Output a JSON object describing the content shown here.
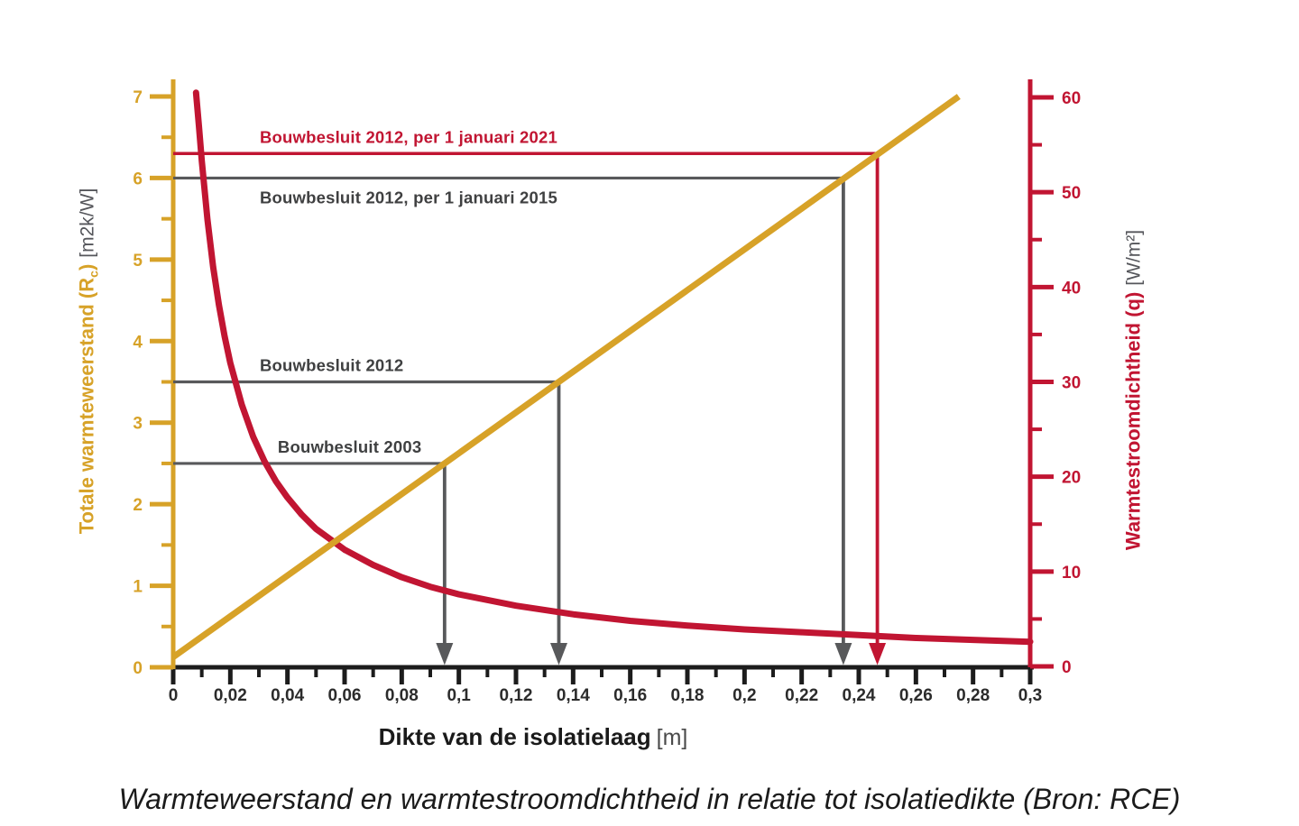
{
  "caption": "Warmteweerstand en warmtestroomdichtheid in relatie tot isolatiedikte (Bron: RCE)",
  "x_axis_title": {
    "text": "Dikte van de isolatielaag",
    "unit": "[m]"
  },
  "left_axis_title": {
    "text": "Totale warmteweerstand (R",
    "sub": "c",
    "close": ")",
    "unit": "[m2k/W]"
  },
  "right_axis_title": {
    "text": "Warmtestroomdichtheid (q)",
    "unit": "[W/m²]"
  },
  "colors": {
    "gold": "#D7A228",
    "red": "#C11532",
    "gray_line": "#58595B",
    "gray_text": "#3F4041",
    "axis_black": "#1C1C1C",
    "tick_text_dark": "#2B2B2B"
  },
  "chart_data": {
    "type": "line",
    "title": "Warmteweerstand en warmtestroomdichtheid in relatie tot isolatiedikte (Bron: RCE)",
    "xlabel": "Dikte van de isolatielaag [m]",
    "x_axis": {
      "range": [
        0,
        0.3
      ],
      "major_ticks": [
        0,
        0.02,
        0.04,
        0.06,
        0.08,
        0.1,
        0.12,
        0.14,
        0.16,
        0.18,
        0.2,
        0.22,
        0.24,
        0.26,
        0.28,
        0.3
      ],
      "tick_labels": [
        "0",
        "0,02",
        "0,04",
        "0,06",
        "0,08",
        "0,1",
        "0,12",
        "0,14",
        "0,16",
        "0,18",
        "0,2",
        "0,22",
        "0,24",
        "0,26",
        "0,28",
        "0,3"
      ],
      "minor_ticks": [
        0.01,
        0.03,
        0.05,
        0.07,
        0.09,
        0.11,
        0.13,
        0.15,
        0.17,
        0.19,
        0.21,
        0.23,
        0.25,
        0.27,
        0.29
      ]
    },
    "left_y_axis": {
      "label": "Totale warmteweerstand (Rc) [m2k/W]",
      "range": [
        0,
        7
      ],
      "major_ticks": [
        0,
        1,
        2,
        3,
        4,
        5,
        6,
        7
      ],
      "tick_labels": [
        "0",
        "1",
        "2",
        "3",
        "4",
        "5",
        "6",
        "7"
      ],
      "minor_ticks": [
        0.5,
        1.5,
        2.5,
        3.5,
        4.5,
        5.5,
        6.5
      ]
    },
    "right_y_axis": {
      "label": "Warmtestroomdichtheid (q) [W/m²]",
      "range": [
        0,
        60
      ],
      "major_ticks": [
        0,
        10,
        20,
        30,
        40,
        50,
        60
      ],
      "tick_labels": [
        "0",
        "10",
        "20",
        "30",
        "40",
        "50",
        "60"
      ],
      "minor_ticks": [
        5,
        15,
        25,
        35,
        45,
        55
      ]
    },
    "series": [
      {
        "name": "Totale warmteweerstand (Rc)",
        "axis": "left",
        "color_key": "gold",
        "stroke_width": 7,
        "points": [
          [
            0,
            0.125
          ],
          [
            0.275,
            7.0
          ]
        ]
      },
      {
        "name": "Warmtestroomdichtheid (q)",
        "axis": "right",
        "color_key": "red",
        "stroke_width": 7,
        "points": [
          [
            0.008,
            60.5
          ],
          [
            0.009,
            57.0
          ],
          [
            0.01,
            53.3
          ],
          [
            0.012,
            47.1
          ],
          [
            0.014,
            42.1
          ],
          [
            0.016,
            38.1
          ],
          [
            0.018,
            34.8
          ],
          [
            0.02,
            32.0
          ],
          [
            0.024,
            27.6
          ],
          [
            0.028,
            24.2
          ],
          [
            0.032,
            21.6
          ],
          [
            0.036,
            19.5
          ],
          [
            0.04,
            17.8
          ],
          [
            0.045,
            16.0
          ],
          [
            0.05,
            14.5
          ],
          [
            0.06,
            12.3
          ],
          [
            0.07,
            10.7
          ],
          [
            0.08,
            9.4
          ],
          [
            0.09,
            8.4
          ],
          [
            0.1,
            7.6
          ],
          [
            0.12,
            6.4
          ],
          [
            0.14,
            5.5
          ],
          [
            0.16,
            4.8
          ],
          [
            0.18,
            4.3
          ],
          [
            0.2,
            3.9
          ],
          [
            0.22,
            3.6
          ],
          [
            0.24,
            3.3
          ],
          [
            0.26,
            3.0
          ],
          [
            0.28,
            2.8
          ],
          [
            0.3,
            2.6
          ]
        ]
      }
    ],
    "annotations": [
      {
        "label": "Bouwbesluit 2012, per 1 januari 2021",
        "rc": 6.3,
        "drop_x": 0.2465,
        "label_x": 0.0303,
        "side": "above",
        "line_color_key": "red",
        "label_color_key": "red"
      },
      {
        "label": "Bouwbesluit 2012, per 1 januari 2015",
        "rc": 6.0,
        "drop_x": 0.2346,
        "label_x": 0.0303,
        "side": "below",
        "line_color_key": "gray_line",
        "label_color_key": "gray_text"
      },
      {
        "label": "Bouwbesluit 2012",
        "rc": 3.5,
        "drop_x": 0.135,
        "label_x": 0.0303,
        "side": "above",
        "line_color_key": "gray_line",
        "label_color_key": "gray_text"
      },
      {
        "label": "Bouwbesluit 2003",
        "rc": 2.5,
        "drop_x": 0.095,
        "label_x": 0.0366,
        "side": "above",
        "line_color_key": "gray_line",
        "label_color_key": "gray_text"
      }
    ]
  }
}
